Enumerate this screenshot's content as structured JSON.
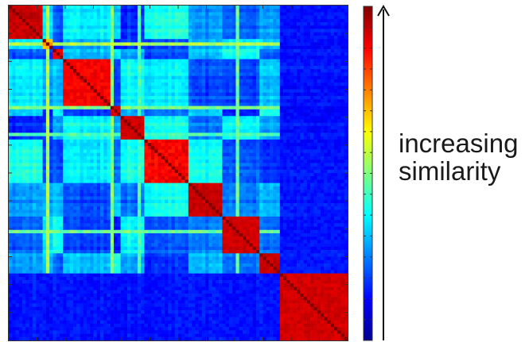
{
  "chart_data": {
    "type": "heatmap",
    "title": "",
    "xlabel": "",
    "ylabel": "",
    "matrix_size": 100,
    "blocks": [
      {
        "start": 0,
        "end": 10,
        "within": 0.93,
        "variation": 0.05
      },
      {
        "start": 10,
        "end": 13,
        "within": 0.72,
        "variation": 0.1
      },
      {
        "start": 13,
        "end": 16,
        "within": 0.9,
        "variation": 0.05
      },
      {
        "start": 16,
        "end": 30,
        "within": 0.88,
        "variation": 0.05
      },
      {
        "start": 30,
        "end": 33,
        "within": 0.92,
        "variation": 0.04
      },
      {
        "start": 33,
        "end": 40,
        "within": 0.92,
        "variation": 0.04
      },
      {
        "start": 40,
        "end": 53,
        "within": 0.88,
        "variation": 0.07
      },
      {
        "start": 53,
        "end": 63,
        "within": 0.93,
        "variation": 0.04
      },
      {
        "start": 63,
        "end": 74,
        "within": 0.92,
        "variation": 0.04
      },
      {
        "start": 74,
        "end": 80,
        "within": 0.93,
        "variation": 0.04
      },
      {
        "start": 80,
        "end": 100,
        "within": 0.92,
        "variation": 0.04
      }
    ],
    "between_block_range": [
      0.16,
      0.42
    ],
    "low_similarity_group": {
      "start": 80,
      "end": 100,
      "value": 0.14
    },
    "highlight_bands": [
      {
        "index": 11,
        "value": 0.55
      },
      {
        "index": 30,
        "value": 0.5
      },
      {
        "index": 38,
        "value": 0.45
      },
      {
        "index": 67,
        "value": 0.48
      }
    ],
    "value_range": [
      0,
      1
    ],
    "colormap": "jet",
    "colormap_stops": [
      "#00008f",
      "#0000ff",
      "#00ffff",
      "#ffff00",
      "#ff0000",
      "#800000"
    ],
    "colorbar": {
      "tick_count": 16,
      "label": "increasing similarity"
    }
  },
  "annotation": {
    "line1": "increasing",
    "line2": "similarity",
    "arrow_direction": "up"
  }
}
